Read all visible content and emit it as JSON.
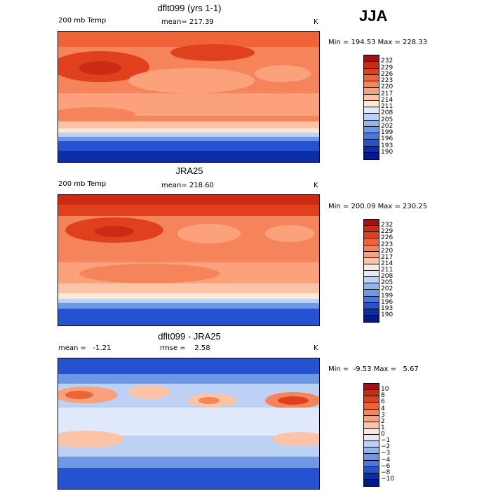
{
  "season_label": "JJA",
  "chart_data": [
    {
      "type": "heatmap",
      "title": "dflt099 (yrs 1-1)",
      "left_label": "200 mb Temp",
      "center_label": "mean= 217.39",
      "units": "K",
      "min_max": "Min = 194.53 Max = 228.33",
      "legend_levels": [
        "232",
        "229",
        "226",
        "223",
        "220",
        "217",
        "214",
        "211",
        "208",
        "205",
        "202",
        "199",
        "196",
        "193",
        "190"
      ],
      "legend_colors": [
        "#a50f15",
        "#cb2b12",
        "#e0401d",
        "#ee6338",
        "#f6845a",
        "#fba27d",
        "#fdc3a6",
        "#fde8d6",
        "#dfe9fb",
        "#bcd1f4",
        "#94b5ec",
        "#6e98e6",
        "#4878df",
        "#2552d1",
        "#0a2ea8",
        "#001a8a"
      ],
      "x_range_deg": [
        0,
        360
      ],
      "y_range_deg": [
        -90,
        90
      ]
    },
    {
      "type": "heatmap",
      "title": "JRA25",
      "left_label": "200 mb Temp",
      "center_label": "mean= 218.60",
      "units": "K",
      "min_max": "Min = 200.09 Max = 230.25",
      "legend_levels": [
        "232",
        "229",
        "226",
        "223",
        "220",
        "217",
        "214",
        "211",
        "208",
        "205",
        "202",
        "199",
        "196",
        "193",
        "190"
      ],
      "legend_colors": [
        "#a50f15",
        "#cb2b12",
        "#e0401d",
        "#ee6338",
        "#f6845a",
        "#fba27d",
        "#fdc3a6",
        "#fde8d6",
        "#dfe9fb",
        "#bcd1f4",
        "#94b5ec",
        "#6e98e6",
        "#4878df",
        "#2552d1",
        "#0a2ea8",
        "#001a8a"
      ],
      "x_range_deg": [
        0,
        360
      ],
      "y_range_deg": [
        -90,
        90
      ]
    },
    {
      "type": "heatmap",
      "title": "dflt099 - JRA25",
      "left_label": "mean =   -1.21",
      "center_label": "rmse =    2.58",
      "units": "K",
      "min_max": "Min =  -9.53 Max =   5.67",
      "legend_levels": [
        "10",
        "8",
        "6",
        "4",
        "3",
        "2",
        "1",
        "0",
        "−1",
        "−2",
        "−3",
        "−4",
        "−6",
        "−8",
        "−10"
      ],
      "legend_colors": [
        "#a50f15",
        "#cb2b12",
        "#e0401d",
        "#ee6338",
        "#f6845a",
        "#fba27d",
        "#fdc3a6",
        "#fde8d6",
        "#dfe9fb",
        "#bcd1f4",
        "#94b5ec",
        "#6e98e6",
        "#4878df",
        "#2552d1",
        "#0a2ea8",
        "#001a8a"
      ],
      "x_range_deg": [
        0,
        360
      ],
      "y_range_deg": [
        -90,
        90
      ]
    }
  ]
}
